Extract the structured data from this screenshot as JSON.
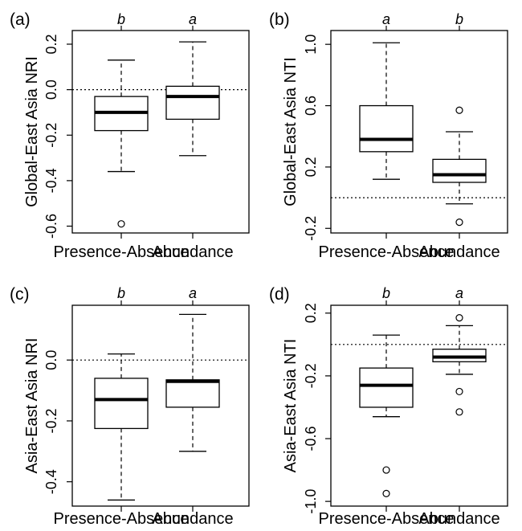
{
  "chart_data": [
    {
      "type": "box",
      "panel_label": "(a)",
      "ylabel": "Global-East Asia NRI",
      "categories": [
        "Presence-Absence",
        "Abundance"
      ],
      "group_letters": [
        "b",
        "a"
      ],
      "y_ticks": [
        0.2,
        0.0,
        -0.2,
        -0.4,
        -0.6
      ],
      "y_tick_labels": [
        "0.2",
        "0.0",
        "-0.2",
        "-0.4",
        "-0.6"
      ],
      "ylim": [
        -0.63,
        0.26
      ],
      "reference_line": 0.0,
      "boxes": [
        {
          "whisker_low": -0.36,
          "q1": -0.18,
          "median": -0.1,
          "q3": -0.03,
          "whisker_high": 0.13,
          "outliers": [
            -0.59
          ]
        },
        {
          "whisker_low": -0.29,
          "q1": -0.13,
          "median": -0.03,
          "q3": 0.015,
          "whisker_high": 0.21,
          "outliers": []
        }
      ]
    },
    {
      "type": "box",
      "panel_label": "(b)",
      "ylabel": "Global-East Asia NTI",
      "categories": [
        "Presence-Absence",
        "Abundance"
      ],
      "group_letters": [
        "a",
        "b"
      ],
      "y_ticks": [
        1.0,
        0.6,
        0.2,
        -0.2
      ],
      "y_tick_labels": [
        "1.0",
        "0.6",
        "0.2",
        "-0.2"
      ],
      "ylim": [
        -0.23,
        1.09
      ],
      "reference_line": 0.0,
      "boxes": [
        {
          "whisker_low": 0.12,
          "q1": 0.3,
          "median": 0.38,
          "q3": 0.6,
          "whisker_high": 1.01,
          "outliers": []
        },
        {
          "whisker_low": -0.04,
          "q1": 0.1,
          "median": 0.15,
          "q3": 0.25,
          "whisker_high": 0.43,
          "outliers": [
            0.57,
            -0.16
          ]
        }
      ]
    },
    {
      "type": "box",
      "panel_label": "(c)",
      "ylabel": "Asia-East Asia NRI",
      "categories": [
        "Presence-Absence",
        "Abundance"
      ],
      "group_letters": [
        "b",
        "a"
      ],
      "y_ticks": [
        0.0,
        -0.2,
        -0.4
      ],
      "y_tick_labels": [
        "0.0",
        "-0.2",
        "-0.4"
      ],
      "ylim": [
        -0.48,
        0.18
      ],
      "reference_line": 0.0,
      "boxes": [
        {
          "whisker_low": -0.46,
          "q1": -0.225,
          "median": -0.13,
          "q3": -0.06,
          "whisker_high": 0.02,
          "outliers": []
        },
        {
          "whisker_low": -0.3,
          "q1": -0.155,
          "median": -0.07,
          "q3": -0.065,
          "whisker_high": 0.15,
          "outliers": []
        }
      ]
    },
    {
      "type": "box",
      "panel_label": "(d)",
      "ylabel": "Asia-East Asia NTI",
      "categories": [
        "Presence-Absence",
        "Abundance"
      ],
      "group_letters": [
        "b",
        "a"
      ],
      "y_ticks": [
        0.2,
        -0.2,
        -0.6,
        -1.0
      ],
      "y_tick_labels": [
        "0.2",
        "-0.2",
        "-0.6",
        "-1.0"
      ],
      "ylim": [
        -1.03,
        0.25
      ],
      "reference_line": 0.0,
      "boxes": [
        {
          "whisker_low": -0.46,
          "q1": -0.4,
          "median": -0.26,
          "q3": -0.15,
          "whisker_high": 0.06,
          "outliers": [
            -0.8,
            -0.95
          ]
        },
        {
          "whisker_low": -0.19,
          "q1": -0.11,
          "median": -0.08,
          "q3": -0.03,
          "whisker_high": 0.12,
          "outliers": [
            0.17,
            -0.3,
            -0.43
          ]
        }
      ]
    }
  ]
}
